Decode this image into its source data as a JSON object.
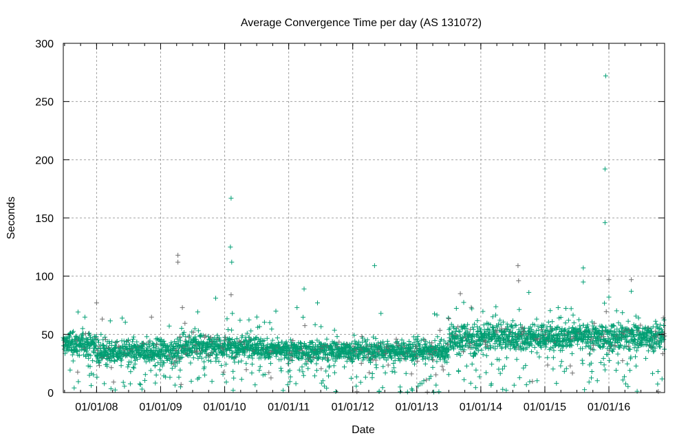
{
  "chart_data": {
    "type": "scatter",
    "title": "Average Convergence Time per day (AS 131072)",
    "xlabel": "Date",
    "ylabel": "Seconds",
    "ylim": [
      0,
      300
    ],
    "xlim_year": [
      2007.48,
      2016.87
    ],
    "yticks": [
      "0",
      "50",
      "100",
      "150",
      "200",
      "250",
      "300"
    ],
    "xticks": [
      {
        "year": 2008,
        "label": "01/01/08"
      },
      {
        "year": 2009,
        "label": "01/01/09"
      },
      {
        "year": 2010,
        "label": "01/01/10"
      },
      {
        "year": 2011,
        "label": "01/01/11"
      },
      {
        "year": 2012,
        "label": "01/01/12"
      },
      {
        "year": 2013,
        "label": "01/01/13"
      },
      {
        "year": 2014,
        "label": "01/01/14"
      },
      {
        "year": 2015,
        "label": "01/01/15"
      },
      {
        "year": 2016,
        "label": "01/01/16"
      }
    ],
    "grid": true,
    "legend": "none",
    "colors": {
      "primary": "#009e73",
      "secondary": "#6e6e6e",
      "grid": "#a0a0a0"
    },
    "baseline_segments": [
      {
        "from": 2007.48,
        "to": 2008.0,
        "mean": 42,
        "spread": 7
      },
      {
        "from": 2008.0,
        "to": 2009.3,
        "mean": 35,
        "spread": 7
      },
      {
        "from": 2009.3,
        "to": 2010.6,
        "mean": 40,
        "spread": 7
      },
      {
        "from": 2010.6,
        "to": 2013.5,
        "mean": 36,
        "spread": 6
      },
      {
        "from": 2013.5,
        "to": 2014.0,
        "mean": 46,
        "spread": 8
      },
      {
        "from": 2014.0,
        "to": 2016.87,
        "mean": 48,
        "spread": 8
      }
    ],
    "outliers": [
      {
        "x": 2008.0,
        "y": 77,
        "series": "secondary"
      },
      {
        "x": 2009.27,
        "y": 118,
        "series": "secondary"
      },
      {
        "x": 2009.27,
        "y": 112,
        "series": "secondary"
      },
      {
        "x": 2009.34,
        "y": 73,
        "series": "secondary"
      },
      {
        "x": 2009.86,
        "y": 81,
        "series": "primary"
      },
      {
        "x": 2010.1,
        "y": 167,
        "series": "primary"
      },
      {
        "x": 2010.09,
        "y": 125,
        "series": "primary"
      },
      {
        "x": 2010.11,
        "y": 112,
        "series": "primary"
      },
      {
        "x": 2010.1,
        "y": 84,
        "series": "secondary"
      },
      {
        "x": 2010.12,
        "y": 68,
        "series": "primary"
      },
      {
        "x": 2010.8,
        "y": 70,
        "series": "primary"
      },
      {
        "x": 2011.13,
        "y": 73,
        "series": "primary"
      },
      {
        "x": 2011.24,
        "y": 89,
        "series": "primary"
      },
      {
        "x": 2011.45,
        "y": 77,
        "series": "primary"
      },
      {
        "x": 2012.34,
        "y": 109,
        "series": "primary"
      },
      {
        "x": 2012.44,
        "y": 68,
        "series": "primary"
      },
      {
        "x": 2013.68,
        "y": 85,
        "series": "secondary"
      },
      {
        "x": 2013.86,
        "y": 72,
        "series": "primary"
      },
      {
        "x": 2014.58,
        "y": 109,
        "series": "secondary"
      },
      {
        "x": 2014.59,
        "y": 96,
        "series": "secondary"
      },
      {
        "x": 2014.75,
        "y": 86,
        "series": "primary"
      },
      {
        "x": 2015.6,
        "y": 107,
        "series": "primary"
      },
      {
        "x": 2015.6,
        "y": 95,
        "series": "primary"
      },
      {
        "x": 2015.95,
        "y": 272,
        "series": "primary"
      },
      {
        "x": 2015.94,
        "y": 192,
        "series": "primary"
      },
      {
        "x": 2015.94,
        "y": 146,
        "series": "primary"
      },
      {
        "x": 2016.0,
        "y": 97,
        "series": "secondary"
      },
      {
        "x": 2016.0,
        "y": 82,
        "series": "primary"
      },
      {
        "x": 2016.35,
        "y": 97,
        "series": "secondary"
      },
      {
        "x": 2016.35,
        "y": 87,
        "series": "primary"
      }
    ]
  }
}
